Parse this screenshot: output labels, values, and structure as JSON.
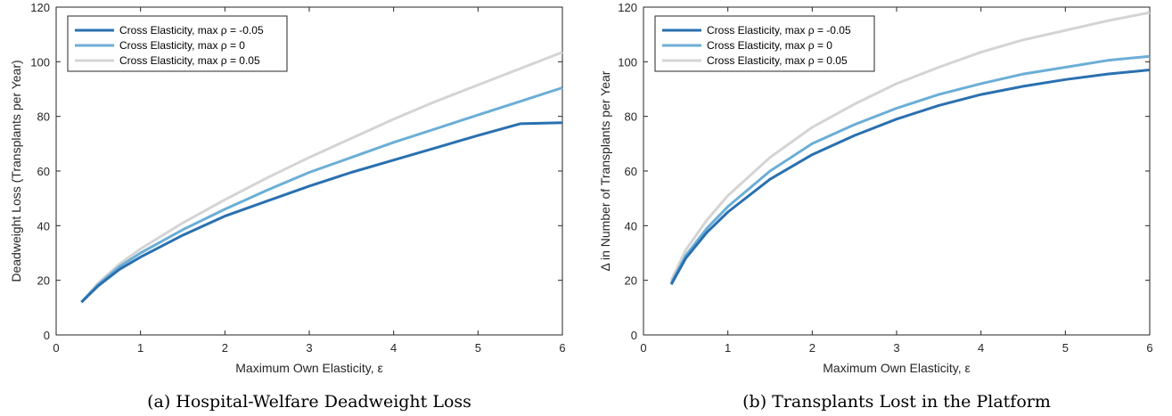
{
  "chart_data": [
    {
      "type": "line",
      "caption": "(a) Hospital-Welfare Deadweight Loss",
      "xlabel": "Maximum Own Elasticity, ε",
      "ylabel": "Deadweight Loss (Transplants per Year)",
      "xlim": [
        0,
        6
      ],
      "ylim": [
        0,
        120
      ],
      "xticks": [
        0,
        1,
        2,
        3,
        4,
        5,
        6
      ],
      "yticks": [
        0,
        20,
        40,
        60,
        80,
        100,
        120
      ],
      "legend_position": "top-left",
      "grid": false,
      "series": [
        {
          "name": "Cross Elasticity, max ρ = -0.05",
          "color": "#2a70b0",
          "x": [
            0.3,
            0.5,
            0.75,
            1,
            1.5,
            2,
            2.5,
            3,
            3.5,
            4,
            4.5,
            5,
            5.5,
            6
          ],
          "y": [
            12,
            18,
            24,
            28.5,
            36.5,
            43.5,
            49,
            54.5,
            59.5,
            64,
            68.5,
            73,
            77.3,
            77.7
          ]
        },
        {
          "name": "Cross Elasticity, max ρ = 0",
          "color": "#6baed6",
          "x": [
            0.3,
            0.5,
            0.75,
            1,
            1.5,
            2,
            2.5,
            3,
            3.5,
            4,
            4.5,
            5,
            5.5,
            6
          ],
          "y": [
            12,
            18.5,
            25,
            30,
            38.5,
            46,
            53,
            59.5,
            65,
            70.5,
            75.5,
            80.5,
            85.5,
            90.5
          ]
        },
        {
          "name": "Cross Elasticity, max ρ = 0.05",
          "color": "#d4d4d4",
          "x": [
            0.3,
            0.5,
            0.75,
            1,
            1.5,
            2,
            2.5,
            3,
            3.5,
            4,
            4.5,
            5,
            5.5,
            6
          ],
          "y": [
            12,
            19,
            26,
            31.5,
            41,
            49.5,
            57.5,
            65,
            72,
            79,
            85.5,
            91.5,
            97.5,
            103.5
          ]
        }
      ]
    },
    {
      "type": "line",
      "caption": "(b) Transplants Lost in the Platform",
      "xlabel": "Maximum Own Elasticity, ε",
      "ylabel": "Δ in Number of Transplants per Year",
      "xlim": [
        0,
        6
      ],
      "ylim": [
        0,
        120
      ],
      "xticks": [
        0,
        1,
        2,
        3,
        4,
        5,
        6
      ],
      "yticks": [
        0,
        20,
        40,
        60,
        80,
        100,
        120
      ],
      "legend_position": "top-left",
      "grid": false,
      "series": [
        {
          "name": "Cross Elasticity, max ρ = -0.05",
          "color": "#2a70b0",
          "x": [
            0.33,
            0.5,
            0.75,
            1,
            1.5,
            2,
            2.5,
            3,
            3.5,
            4,
            4.5,
            5,
            5.5,
            6
          ],
          "y": [
            18.5,
            28,
            37.5,
            45,
            57,
            66,
            73,
            79,
            84,
            88,
            91,
            93.5,
            95.5,
            97
          ]
        },
        {
          "name": "Cross Elasticity, max ρ = 0",
          "color": "#6baed6",
          "x": [
            0.33,
            0.5,
            0.75,
            1,
            1.5,
            2,
            2.5,
            3,
            3.5,
            4,
            4.5,
            5,
            5.5,
            6
          ],
          "y": [
            19,
            29,
            39,
            47,
            60,
            70,
            77,
            83,
            88,
            92,
            95.5,
            98,
            100.5,
            102
          ]
        },
        {
          "name": "Cross Elasticity, max ρ = 0.05",
          "color": "#d4d4d4",
          "x": [
            0.33,
            0.5,
            0.75,
            1,
            1.5,
            2,
            2.5,
            3,
            3.5,
            4,
            4.5,
            5,
            5.5,
            6
          ],
          "y": [
            20,
            31,
            42,
            51,
            65,
            76,
            84.5,
            92,
            98,
            103.5,
            108,
            111.5,
            115,
            118
          ]
        }
      ]
    }
  ]
}
